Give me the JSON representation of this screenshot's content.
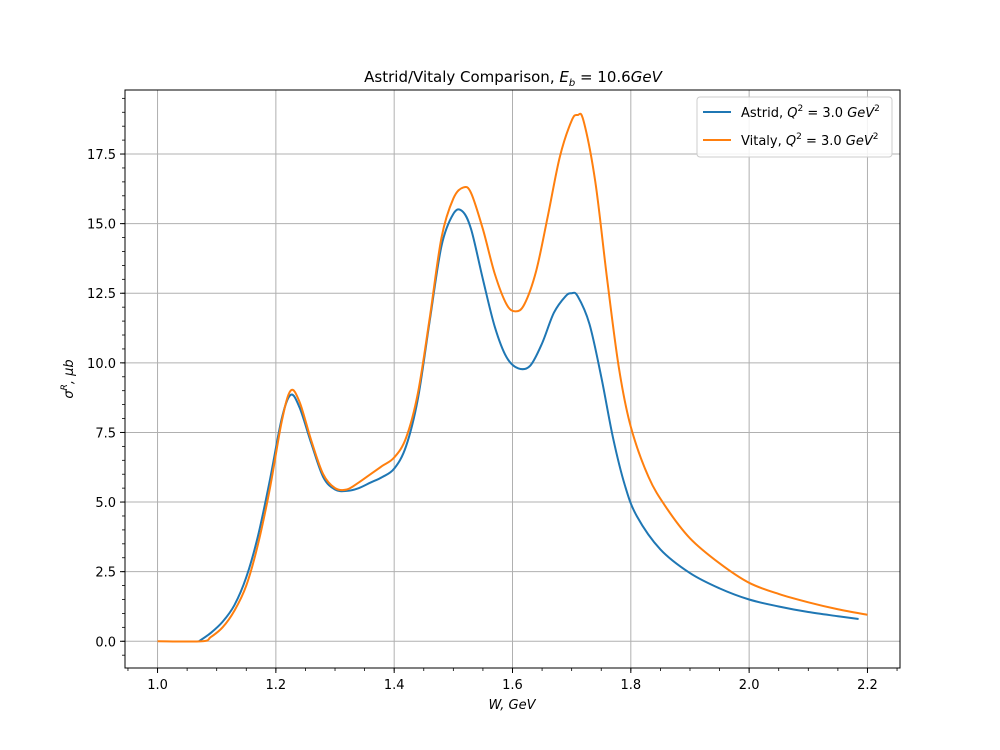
{
  "chart_data": {
    "type": "line",
    "title": "Astrid/Vitaly Comparison, E_b = 10.6GeV",
    "title_parts": {
      "prefix": "Astrid/Vitaly Comparison, ",
      "sym": "E",
      "sub": "b",
      "rest": " = 10.6",
      "unit": "GeV"
    },
    "xlabel": "W, GeV",
    "ylabel": "σ^R, μb",
    "xlim": [
      0.945,
      2.255
    ],
    "ylim": [
      -0.96,
      19.8
    ],
    "xticks": [
      1.0,
      1.2,
      1.4,
      1.6,
      1.8,
      2.0,
      2.2
    ],
    "xtick_labels": [
      "1.0",
      "1.2",
      "1.4",
      "1.6",
      "1.8",
      "2.0",
      "2.2"
    ],
    "yticks": [
      0.0,
      2.5,
      5.0,
      7.5,
      10.0,
      12.5,
      15.0,
      17.5
    ],
    "ytick_labels": [
      "0.0",
      "2.5",
      "5.0",
      "7.5",
      "10.0",
      "12.5",
      "15.0",
      "17.5"
    ],
    "grid": true,
    "legend_position": "top-right",
    "series": [
      {
        "name": "Astrid, Q^2 = 3.0 GeV^2",
        "legend": {
          "prefix": "Astrid, ",
          "var": "Q",
          "sup": "2",
          "mid": " = 3.0 ",
          "unit": "GeV",
          "unit_sup": "2"
        },
        "color": "#1f77b4",
        "points": [
          [
            1.07,
            0.0
          ],
          [
            1.09,
            0.3
          ],
          [
            1.11,
            0.7
          ],
          [
            1.13,
            1.3
          ],
          [
            1.15,
            2.3
          ],
          [
            1.17,
            3.8
          ],
          [
            1.19,
            5.8
          ],
          [
            1.21,
            8.0
          ],
          [
            1.225,
            8.85
          ],
          [
            1.24,
            8.4
          ],
          [
            1.26,
            7.1
          ],
          [
            1.28,
            5.9
          ],
          [
            1.3,
            5.45
          ],
          [
            1.32,
            5.4
          ],
          [
            1.34,
            5.5
          ],
          [
            1.36,
            5.7
          ],
          [
            1.38,
            5.9
          ],
          [
            1.4,
            6.2
          ],
          [
            1.42,
            7.0
          ],
          [
            1.44,
            8.7
          ],
          [
            1.46,
            11.5
          ],
          [
            1.48,
            14.2
          ],
          [
            1.5,
            15.35
          ],
          [
            1.515,
            15.45
          ],
          [
            1.53,
            14.8
          ],
          [
            1.55,
            13.0
          ],
          [
            1.57,
            11.3
          ],
          [
            1.59,
            10.2
          ],
          [
            1.61,
            9.8
          ],
          [
            1.63,
            9.9
          ],
          [
            1.65,
            10.7
          ],
          [
            1.67,
            11.8
          ],
          [
            1.69,
            12.4
          ],
          [
            1.7,
            12.5
          ],
          [
            1.71,
            12.4
          ],
          [
            1.73,
            11.4
          ],
          [
            1.75,
            9.5
          ],
          [
            1.77,
            7.3
          ],
          [
            1.79,
            5.6
          ],
          [
            1.81,
            4.5
          ],
          [
            1.85,
            3.3
          ],
          [
            1.9,
            2.45
          ],
          [
            1.95,
            1.9
          ],
          [
            2.0,
            1.5
          ],
          [
            2.05,
            1.25
          ],
          [
            2.1,
            1.05
          ],
          [
            2.15,
            0.9
          ],
          [
            2.185,
            0.8
          ]
        ]
      },
      {
        "name": "Vitaly, Q^2 = 3.0 GeV^2",
        "legend": {
          "prefix": "Vitaly, ",
          "var": "Q",
          "sup": "2",
          "mid": " = 3.0 ",
          "unit": "GeV",
          "unit_sup": "2"
        },
        "color": "#ff7f0e",
        "points": [
          [
            1.0,
            0.0
          ],
          [
            1.075,
            0.0
          ],
          [
            1.09,
            0.15
          ],
          [
            1.11,
            0.5
          ],
          [
            1.13,
            1.1
          ],
          [
            1.15,
            2.0
          ],
          [
            1.17,
            3.5
          ],
          [
            1.19,
            5.5
          ],
          [
            1.21,
            7.9
          ],
          [
            1.225,
            9.0
          ],
          [
            1.24,
            8.6
          ],
          [
            1.26,
            7.2
          ],
          [
            1.28,
            6.0
          ],
          [
            1.3,
            5.5
          ],
          [
            1.32,
            5.45
          ],
          [
            1.34,
            5.7
          ],
          [
            1.36,
            6.0
          ],
          [
            1.38,
            6.3
          ],
          [
            1.4,
            6.6
          ],
          [
            1.42,
            7.3
          ],
          [
            1.44,
            8.9
          ],
          [
            1.46,
            11.6
          ],
          [
            1.48,
            14.5
          ],
          [
            1.5,
            15.9
          ],
          [
            1.517,
            16.3
          ],
          [
            1.53,
            16.1
          ],
          [
            1.55,
            14.8
          ],
          [
            1.57,
            13.2
          ],
          [
            1.59,
            12.1
          ],
          [
            1.605,
            11.85
          ],
          [
            1.62,
            12.1
          ],
          [
            1.64,
            13.3
          ],
          [
            1.66,
            15.3
          ],
          [
            1.68,
            17.4
          ],
          [
            1.7,
            18.7
          ],
          [
            1.71,
            18.9
          ],
          [
            1.72,
            18.7
          ],
          [
            1.74,
            16.5
          ],
          [
            1.76,
            13.0
          ],
          [
            1.78,
            9.8
          ],
          [
            1.8,
            7.7
          ],
          [
            1.83,
            5.9
          ],
          [
            1.86,
            4.8
          ],
          [
            1.9,
            3.7
          ],
          [
            1.95,
            2.8
          ],
          [
            2.0,
            2.1
          ],
          [
            2.05,
            1.7
          ],
          [
            2.1,
            1.4
          ],
          [
            2.15,
            1.15
          ],
          [
            2.2,
            0.95
          ]
        ]
      }
    ]
  }
}
